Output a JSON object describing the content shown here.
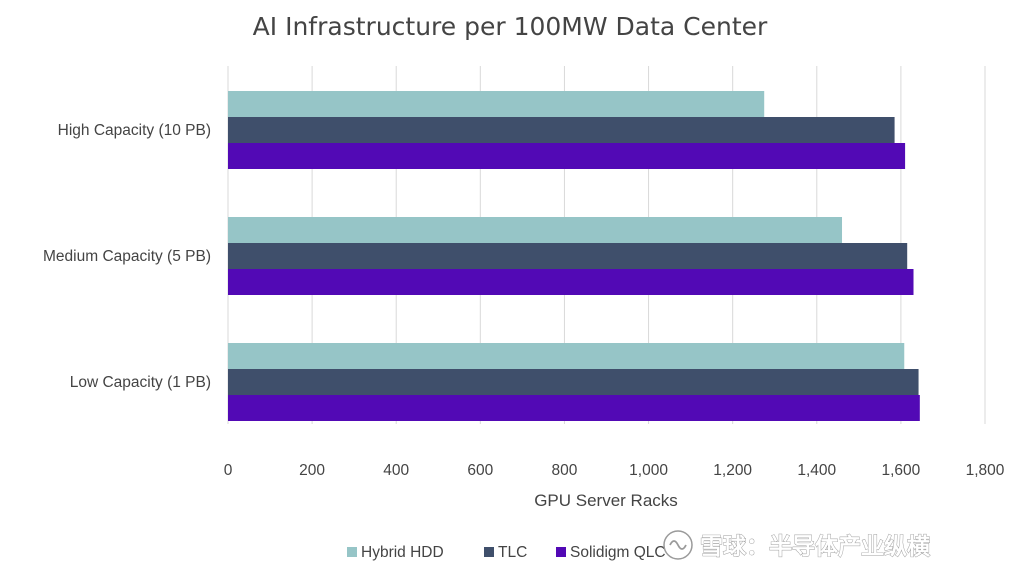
{
  "chart_data": {
    "type": "bar",
    "orientation": "horizontal",
    "title": "AI Infrastructure per 100MW Data Center",
    "xlabel": "GPU Server Racks",
    "ylabel": "",
    "xlim": [
      0,
      1800
    ],
    "xticks": [
      0,
      200,
      400,
      600,
      800,
      1000,
      1200,
      1400,
      1600,
      1800
    ],
    "xtick_labels": [
      "0",
      "200",
      "400",
      "600",
      "800",
      "1,000",
      "1,200",
      "1,400",
      "1,600",
      "1,800"
    ],
    "categories": [
      "High Capacity (10 PB)",
      "Medium Capacity (5 PB)",
      "Low Capacity (1 PB)"
    ],
    "series": [
      {
        "name": "Hybrid HDD",
        "color": "#96c5c7",
        "values": [
          1275,
          1460,
          1608
        ]
      },
      {
        "name": "TLC",
        "color": "#3f4f6b",
        "values": [
          1585,
          1615,
          1642
        ]
      },
      {
        "name": "Solidigm QLC",
        "color": "#5209b5",
        "values": [
          1610,
          1630,
          1645
        ]
      }
    ],
    "grid": "vertical",
    "legend_position": "bottom"
  },
  "watermark": {
    "text": "雪球：半导体产业纵横"
  }
}
